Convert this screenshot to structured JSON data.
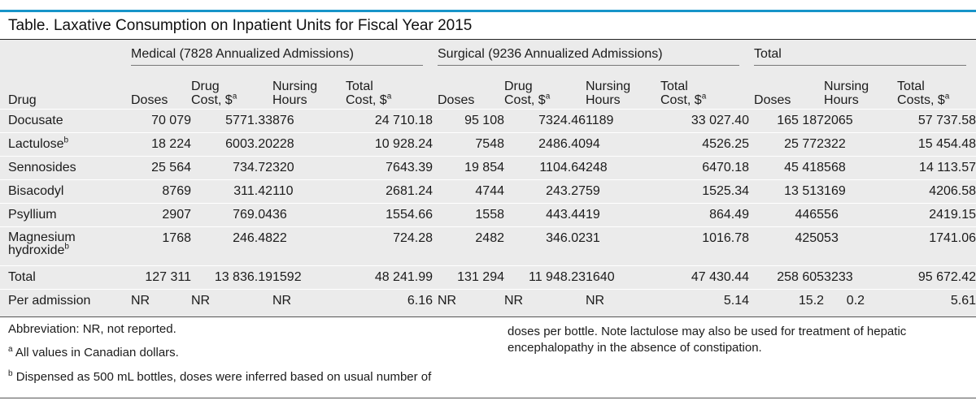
{
  "title": "Table. Laxative Consumption on Inpatient Units for Fiscal Year 2015",
  "groups": {
    "medical": "Medical (7828 Annualized Admissions)",
    "surgical": "Surgical (9236 Annualized Admissions)",
    "total": "Total"
  },
  "headers": {
    "drug": "Drug",
    "doses": "Doses",
    "drug_cost_1": "Drug",
    "drug_cost_2": "Cost, $",
    "nursing_1": "Nursing",
    "nursing_2": "Hours",
    "total_cost_1": "Total",
    "total_cost_2": "Cost, $",
    "total_costs_1": "Total",
    "total_costs_2": "Costs, $",
    "note_a": "a"
  },
  "rows": [
    {
      "drug": "Docusate",
      "drug_sup": "",
      "m_doses": "70 079",
      "m_cost": "5771.33",
      "m_hours": "876",
      "m_total": "24 710.18",
      "s_doses": "95 108",
      "s_cost": "7324.46",
      "s_hours": "1189",
      "s_total": "33 027.40",
      "t_doses": "165 187",
      "t_hours": "2065",
      "t_costs": "57 737.58"
    },
    {
      "drug": "Lactulose",
      "drug_sup": "b",
      "m_doses": "18 224",
      "m_cost": "6003.20",
      "m_hours": "228",
      "m_total": "10 928.24",
      "s_doses": "7548",
      "s_cost": "2486.40",
      "s_hours": "94",
      "s_total": "4526.25",
      "t_doses": "25 772",
      "t_hours": "322",
      "t_costs": "15 454.48"
    },
    {
      "drug": "Sennosides",
      "drug_sup": "",
      "m_doses": "25 564",
      "m_cost": "734.72",
      "m_hours": "320",
      "m_total": "7643.39",
      "s_doses": "19 854",
      "s_cost": "1104.64",
      "s_hours": "248",
      "s_total": "6470.18",
      "t_doses": "45 418",
      "t_hours": "568",
      "t_costs": "14 113.57"
    },
    {
      "drug": "Bisacodyl",
      "drug_sup": "",
      "m_doses": "8769",
      "m_cost": "311.42",
      "m_hours": "110",
      "m_total": "2681.24",
      "s_doses": "4744",
      "s_cost": "243.27",
      "s_hours": "59",
      "s_total": "1525.34",
      "t_doses": "13 513",
      "t_hours": "169",
      "t_costs": "4206.58"
    },
    {
      "drug": "Psyllium",
      "drug_sup": "",
      "m_doses": "2907",
      "m_cost": "769.04",
      "m_hours": "36",
      "m_total": "1554.66",
      "s_doses": "1558",
      "s_cost": "443.44",
      "s_hours": "19",
      "s_total": "864.49",
      "t_doses": "4465",
      "t_hours": "56",
      "t_costs": "2419.15"
    },
    {
      "drug": "Magnesium",
      "drug2": "hydroxide",
      "drug_sup": "b",
      "m_doses": "1768",
      "m_cost": "246.48",
      "m_hours": "22",
      "m_total": "724.28",
      "s_doses": "2482",
      "s_cost": "346.02",
      "s_hours": "31",
      "s_total": "1016.78",
      "t_doses": "4250",
      "t_hours": "53",
      "t_costs": "1741.06"
    },
    {
      "drug": "Total",
      "drug_sup": "",
      "m_doses": "127 311",
      "m_cost": "13 836.19",
      "m_hours": "1592",
      "m_total": "48 241.99",
      "s_doses": "131 294",
      "s_cost": "11 948.23",
      "s_hours": "1640",
      "s_total": "47 430.44",
      "t_doses": "258 605",
      "t_hours": "3233",
      "t_costs": "95 672.42"
    },
    {
      "drug": "Per admission",
      "drug_sup": "",
      "m_doses": "NR",
      "m_cost": "NR",
      "m_hours": "NR",
      "m_total": "6.16",
      "s_doses": "NR",
      "s_cost": "NR",
      "s_hours": "NR",
      "s_total": "5.14",
      "t_doses": "15.2",
      "t_hours": "0.2",
      "t_costs": "5.61"
    }
  ],
  "footnotes": {
    "abbrev": "Abbreviation: NR, not reported.",
    "a_mark": "a",
    "a_text": " All values in Canadian dollars.",
    "b_mark": "b",
    "b_text": " Dispensed as 500 mL bottles, doses were inferred based on usual number of",
    "b_cont": "doses per bottle. Note lactulose may also be used for treatment of hepatic encephalopathy in the absence of constipation."
  }
}
